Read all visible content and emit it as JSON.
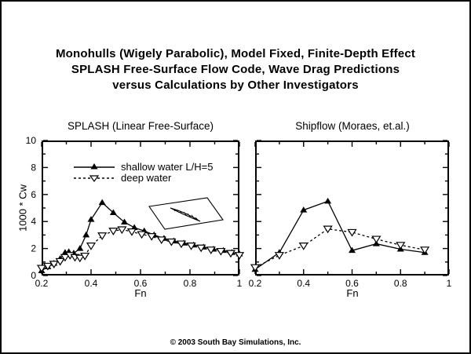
{
  "title": {
    "line1": "Monohulls (Wigely Parabolic), Model Fixed, Finite-Depth Effect",
    "line2": "SPLASH Free-Surface Flow Code, Wave Drag Predictions",
    "line3": "versus Calculations by Other Investigators"
  },
  "footer": {
    "copyright": "© 2003 South Bay Simulations, Inc."
  },
  "colors": {
    "ink": "#000000",
    "background": "#ffffff"
  },
  "chart_data": [
    {
      "id": "splash",
      "type": "line",
      "title": "SPLASH (Linear Free-Surface)",
      "xlabel": "Fn",
      "ylabel": "1000 * Cw",
      "xlim": [
        0.2,
        1.0
      ],
      "ylim": [
        0,
        10
      ],
      "x_major_ticks": [
        0.2,
        0.4,
        0.6,
        0.8,
        1
      ],
      "x_tick_labels": [
        "0.2",
        "0.4",
        "0.6",
        "0.8",
        "1"
      ],
      "x_minor_ticks": [
        0.3,
        0.5,
        0.7,
        0.9
      ],
      "y_major_ticks": [
        0,
        2,
        4,
        6,
        8,
        10
      ],
      "y_tick_labels": [
        "0",
        "2",
        "4",
        "6",
        "8",
        "10"
      ],
      "y_minor_ticks": [
        1,
        3,
        5,
        7,
        9
      ],
      "show_y_tick_labels": true,
      "grid": false,
      "legend_position": "upper-left-inside",
      "series": [
        {
          "name": "shallow water L/H=5",
          "style": "solid",
          "marker": "filled-triangle-up",
          "x": [
            0.2,
            0.225,
            0.25,
            0.275,
            0.295,
            0.31,
            0.33,
            0.355,
            0.38,
            0.4,
            0.445,
            0.49,
            0.535,
            0.575,
            0.615,
            0.655,
            0.695,
            0.735,
            0.775,
            0.815,
            0.855,
            0.895,
            0.935,
            0.97,
            1.0
          ],
          "y": [
            0.35,
            0.65,
            0.9,
            1.25,
            1.7,
            1.75,
            1.65,
            2.0,
            3.0,
            4.15,
            5.4,
            4.65,
            3.95,
            3.55,
            3.3,
            3.0,
            2.75,
            2.55,
            2.4,
            2.25,
            2.1,
            1.95,
            1.85,
            1.7,
            1.6
          ]
        },
        {
          "name": "deep water",
          "style": "dashed",
          "marker": "open-triangle-down",
          "x": [
            0.2,
            0.225,
            0.25,
            0.275,
            0.295,
            0.315,
            0.335,
            0.355,
            0.375,
            0.4,
            0.445,
            0.49,
            0.525,
            0.565,
            0.605,
            0.645,
            0.685,
            0.725,
            0.765,
            0.805,
            0.845,
            0.885,
            0.925,
            0.965,
            1.0
          ],
          "y": [
            0.55,
            0.7,
            0.85,
            1.05,
            1.35,
            1.5,
            1.35,
            1.3,
            1.45,
            2.2,
            2.95,
            3.3,
            3.4,
            3.25,
            3.05,
            2.9,
            2.65,
            2.5,
            2.35,
            2.2,
            2.05,
            1.9,
            1.8,
            1.65,
            1.5
          ]
        }
      ]
    },
    {
      "id": "shipflow",
      "type": "line",
      "title": "Shipflow (Moraes, et.al.)",
      "xlabel": "Fn",
      "ylabel": "",
      "xlim": [
        0.2,
        1.0
      ],
      "ylim": [
        0,
        10
      ],
      "x_major_ticks": [
        0.2,
        0.4,
        0.6,
        0.8,
        1
      ],
      "x_tick_labels": [
        "0.2",
        "0.4",
        "0.6",
        "0.8",
        "1"
      ],
      "x_minor_ticks": [
        0.3,
        0.5,
        0.7,
        0.9
      ],
      "y_major_ticks": [
        0,
        2,
        4,
        6,
        8,
        10
      ],
      "y_tick_labels": [
        "0",
        "2",
        "4",
        "6",
        "8",
        "10"
      ],
      "y_minor_ticks": [
        1,
        3,
        5,
        7,
        9
      ],
      "show_y_tick_labels": false,
      "grid": false,
      "series": [
        {
          "name": "shallow water L/H=5",
          "style": "solid",
          "marker": "filled-triangle-up",
          "x": [
            0.2,
            0.3,
            0.4,
            0.5,
            0.6,
            0.7,
            0.8,
            0.9
          ],
          "y": [
            0.45,
            1.7,
            4.85,
            5.5,
            1.85,
            2.35,
            1.95,
            1.7
          ]
        },
        {
          "name": "deep water",
          "style": "dashed",
          "marker": "open-triangle-down",
          "x": [
            0.2,
            0.3,
            0.4,
            0.5,
            0.6,
            0.7,
            0.8,
            0.9
          ],
          "y": [
            0.6,
            1.5,
            2.2,
            3.45,
            3.2,
            2.7,
            2.25,
            1.9
          ]
        }
      ]
    }
  ]
}
